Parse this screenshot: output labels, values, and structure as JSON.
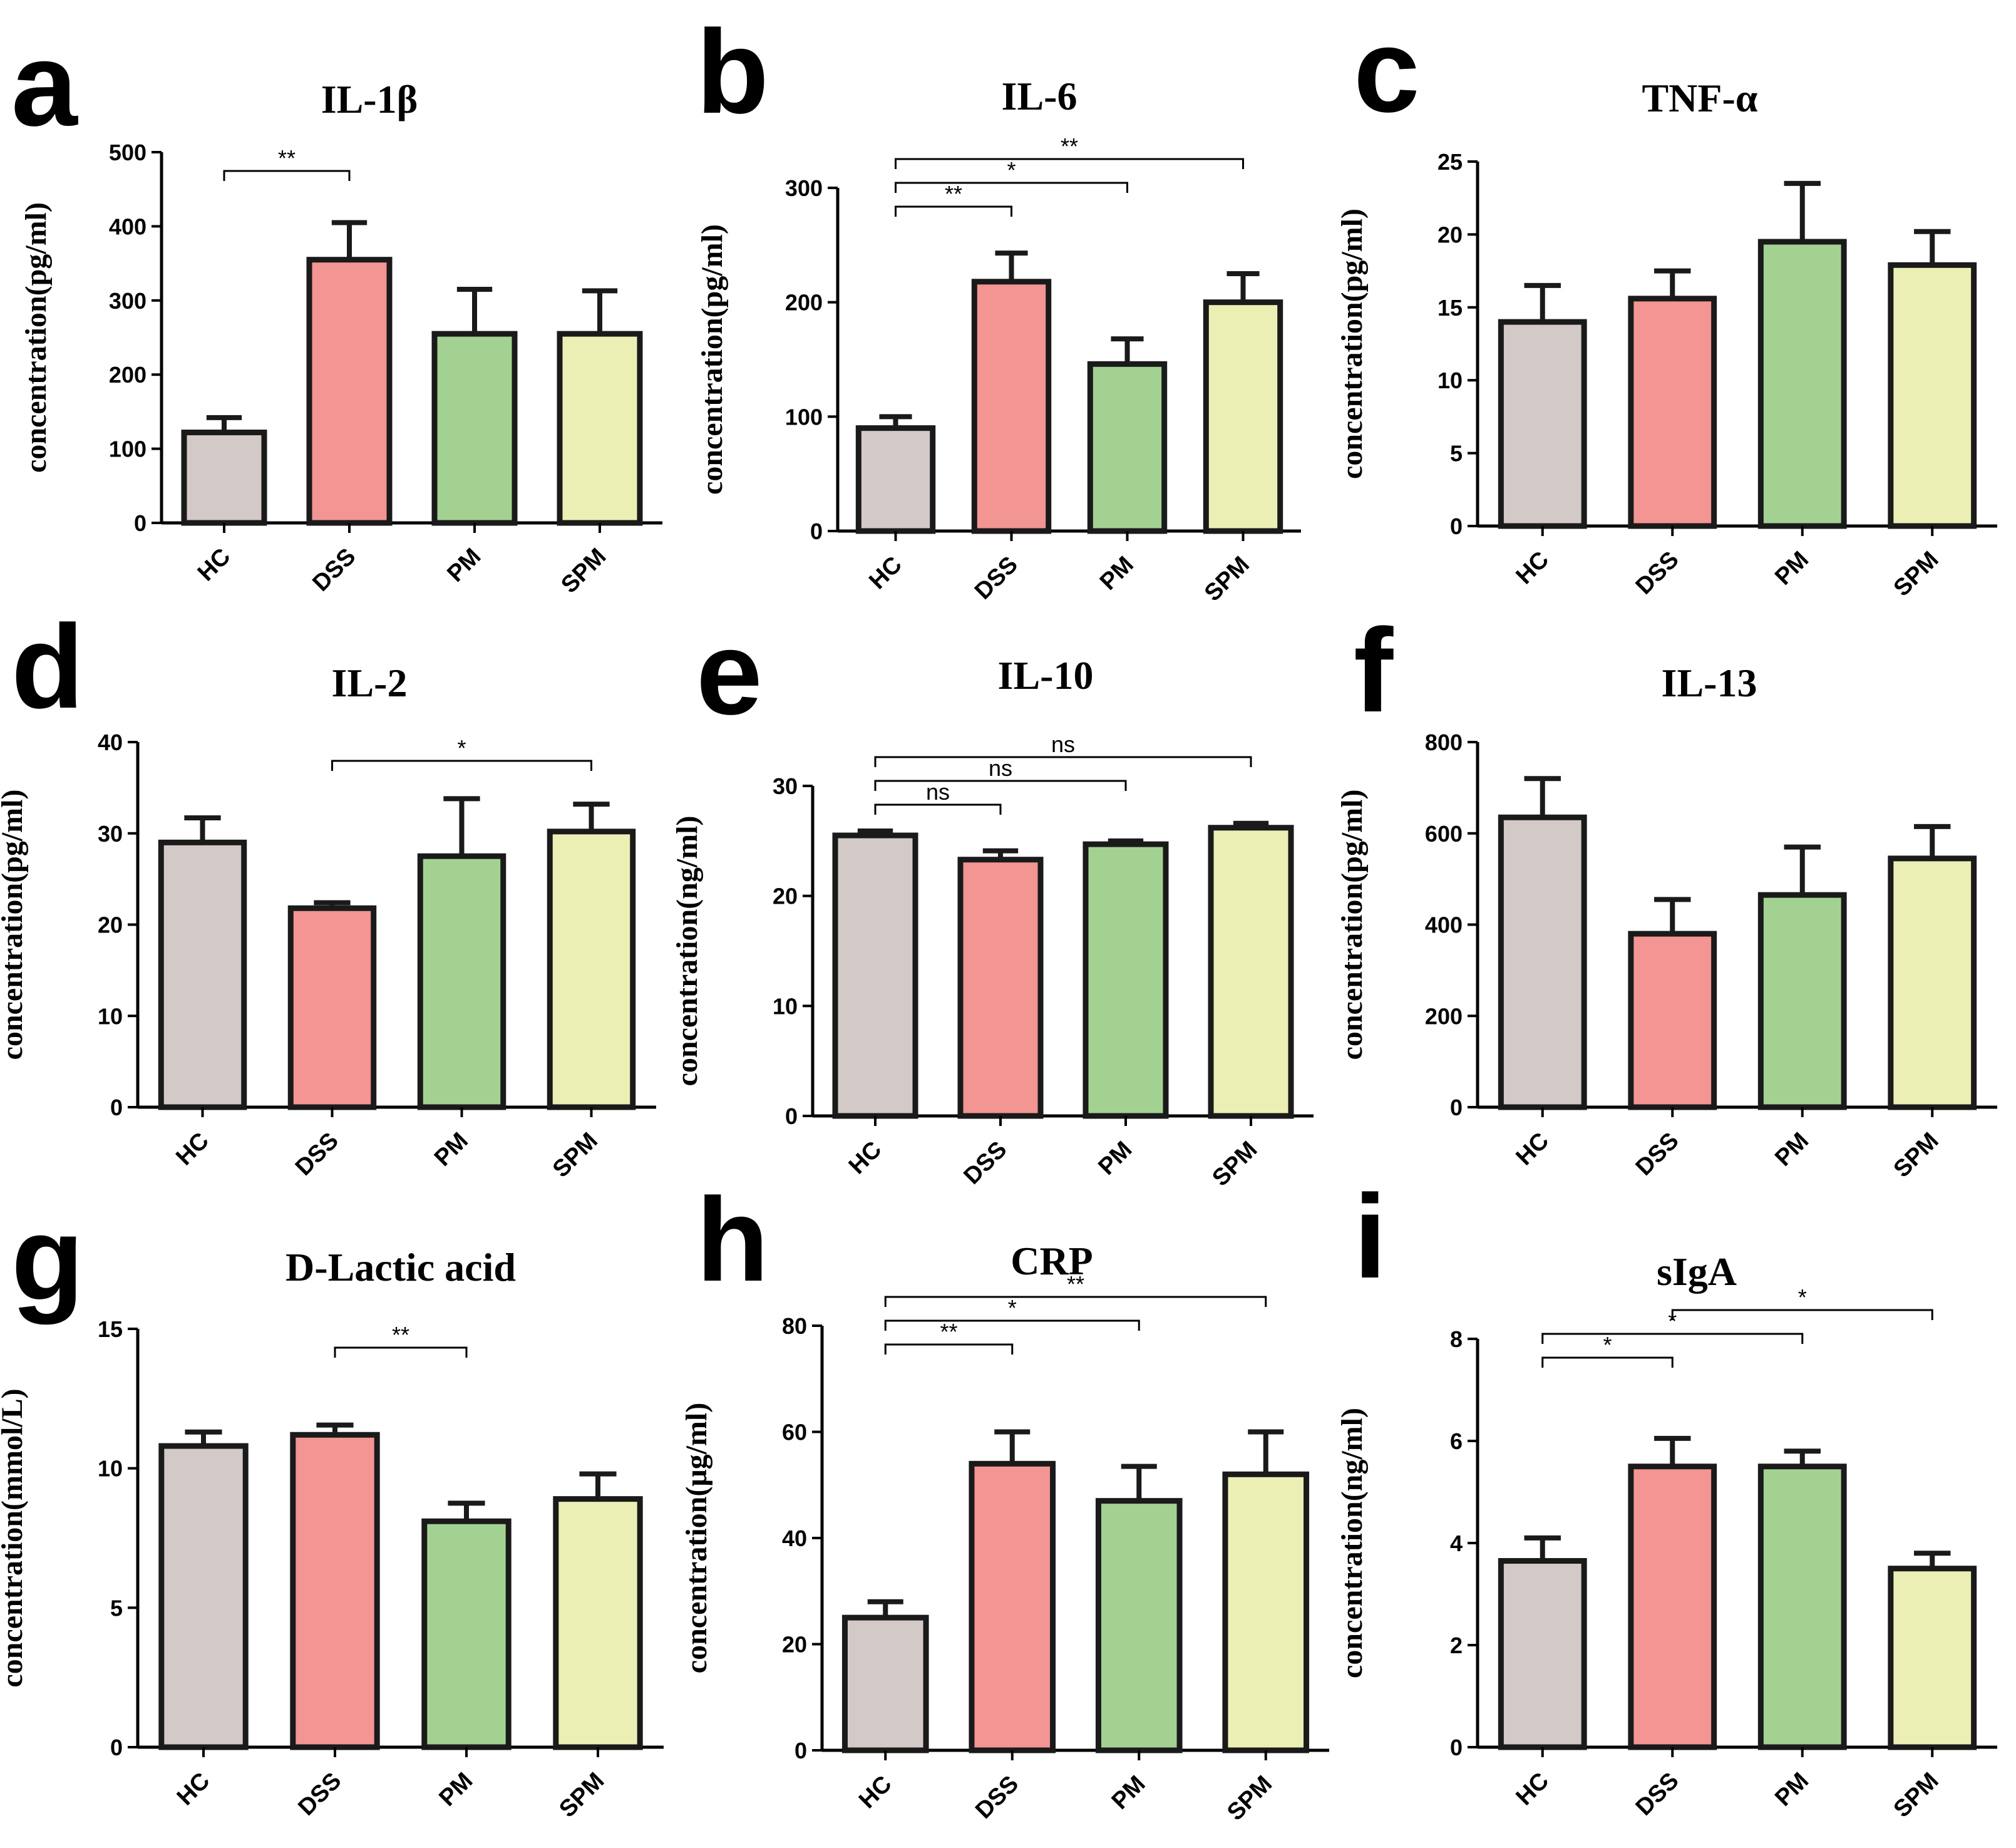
{
  "colors": {
    "HC": "#d3c9c6",
    "DSS": "#f29593",
    "PM": "#a3d192",
    "SPM": "#ecefb4"
  },
  "chart_data": [
    {
      "panel": "a",
      "type": "bar",
      "title": "IL-1β",
      "ylabel": "concentration(pg/ml)",
      "categories": [
        "HC",
        "DSS",
        "PM",
        "SPM"
      ],
      "values": [
        122,
        355,
        255,
        255
      ],
      "errors": [
        20,
        50,
        60,
        58
      ],
      "ylim": [
        0,
        500
      ],
      "yticks": [
        "0",
        "100",
        "200",
        "300",
        "400",
        "500"
      ],
      "sig": [
        {
          "from": 0,
          "to": 1,
          "label": "**"
        }
      ]
    },
    {
      "panel": "b",
      "type": "bar",
      "title": "IL-6",
      "ylabel": "concentration(pg/ml)",
      "categories": [
        "HC",
        "DSS",
        "PM",
        "SPM"
      ],
      "values": [
        90,
        218,
        146,
        200
      ],
      "errors": [
        10,
        25,
        22,
        25
      ],
      "ylim": [
        0,
        300
      ],
      "yticks": [
        "0",
        "100",
        "200",
        "300"
      ],
      "sig": [
        {
          "from": 0,
          "to": 1,
          "label": "**"
        },
        {
          "from": 0,
          "to": 2,
          "label": "*"
        },
        {
          "from": 0,
          "to": 3,
          "label": "**"
        }
      ]
    },
    {
      "panel": "c",
      "type": "bar",
      "title": "TNF-α",
      "ylabel": "concentration(pg/ml)",
      "categories": [
        "HC",
        "DSS",
        "PM",
        "SPM"
      ],
      "values": [
        14,
        15.6,
        19.5,
        17.9
      ],
      "errors": [
        2.5,
        1.9,
        4,
        2.3
      ],
      "ylim": [
        0,
        25
      ],
      "yticks": [
        "0",
        "5",
        "10",
        "15",
        "20",
        "25"
      ],
      "sig": []
    },
    {
      "panel": "d",
      "type": "bar",
      "title": "IL-2",
      "ylabel": "concentration(pg/ml)",
      "categories": [
        "HC",
        "DSS",
        "PM",
        "SPM"
      ],
      "values": [
        29,
        21.8,
        27.5,
        30.2
      ],
      "errors": [
        2.7,
        0.6,
        6.3,
        3
      ],
      "ylim": [
        0,
        40
      ],
      "yticks": [
        "0",
        "10",
        "20",
        "30",
        "40"
      ],
      "sig": [
        {
          "from": 1,
          "to": 3,
          "label": "*"
        }
      ]
    },
    {
      "panel": "e",
      "type": "bar",
      "title": "IL-10",
      "ylabel": "concentration(ng/ml)",
      "categories": [
        "HC",
        "DSS",
        "PM",
        "SPM"
      ],
      "values": [
        25.5,
        23.3,
        24.7,
        26.2
      ],
      "errors": [
        0.4,
        0.8,
        0.3,
        0.4
      ],
      "ylim": [
        0,
        30
      ],
      "yticks": [
        "0",
        "10",
        "20",
        "30"
      ],
      "sig": [
        {
          "from": 0,
          "to": 1,
          "label": "ns"
        },
        {
          "from": 0,
          "to": 2,
          "label": "ns"
        },
        {
          "from": 0,
          "to": 3,
          "label": "ns"
        }
      ]
    },
    {
      "panel": "f",
      "type": "bar",
      "title": "IL-13",
      "ylabel": "concentration(pg/ml)",
      "categories": [
        "HC",
        "DSS",
        "PM",
        "SPM"
      ],
      "values": [
        635,
        380,
        465,
        545
      ],
      "errors": [
        85,
        75,
        105,
        70
      ],
      "ylim": [
        0,
        800
      ],
      "yticks": [
        "0",
        "200",
        "400",
        "600",
        "800"
      ],
      "sig": []
    },
    {
      "panel": "g",
      "type": "bar",
      "title": "D-Lactic acid",
      "ylabel": "concentration(mmol/L)",
      "categories": [
        "HC",
        "DSS",
        "PM",
        "SPM"
      ],
      "values": [
        10.8,
        11.2,
        8.1,
        8.9
      ],
      "errors": [
        0.5,
        0.35,
        0.65,
        0.9
      ],
      "ylim": [
        0,
        15
      ],
      "yticks": [
        "0",
        "5",
        "10",
        "15"
      ],
      "sig": [
        {
          "from": 1,
          "to": 2,
          "label": "**"
        }
      ]
    },
    {
      "panel": "h",
      "type": "bar",
      "title": "CRP",
      "ylabel": "concentration(μg/ml)",
      "categories": [
        "HC",
        "DSS",
        "PM",
        "SPM"
      ],
      "values": [
        25,
        54,
        47,
        52
      ],
      "errors": [
        3,
        6,
        6.5,
        8
      ],
      "ylim": [
        0,
        80
      ],
      "yticks": [
        "0",
        "20",
        "40",
        "60",
        "80"
      ],
      "sig": [
        {
          "from": 0,
          "to": 1,
          "label": "**"
        },
        {
          "from": 0,
          "to": 2,
          "label": "*"
        },
        {
          "from": 0,
          "to": 3,
          "label": "**"
        }
      ]
    },
    {
      "panel": "i",
      "type": "bar",
      "title": "sIgA",
      "ylabel": "concentration(ng/ml)",
      "categories": [
        "HC",
        "DSS",
        "PM",
        "SPM"
      ],
      "values": [
        3.65,
        5.5,
        5.5,
        3.5
      ],
      "errors": [
        0.45,
        0.55,
        0.3,
        0.3
      ],
      "ylim": [
        0,
        8
      ],
      "yticks": [
        "0",
        "2",
        "4",
        "6",
        "8"
      ],
      "sig": [
        {
          "from": 0,
          "to": 1,
          "label": "*"
        },
        {
          "from": 0,
          "to": 2,
          "label": "*"
        },
        {
          "from": 1,
          "to": 3,
          "label": "*"
        }
      ]
    }
  ]
}
